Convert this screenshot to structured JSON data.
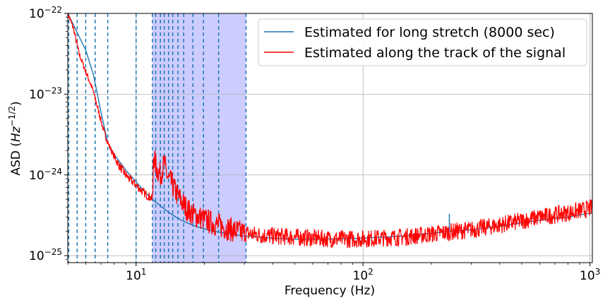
{
  "chart_data": {
    "type": "line",
    "x_scale": "log",
    "y_scale": "log",
    "xlim": [
      5,
      1024
    ],
    "ylim": [
      8.2e-26,
      1e-22
    ],
    "xlabel": "Frequency (Hz)",
    "ylabel_prefix": "ASD (",
    "ylabel_unit": "Hz",
    "ylabel_exponent": "−1/2",
    "ylabel_suffix": ")",
    "grid": true,
    "legend_placement": "top-right",
    "x_ticks": [
      {
        "value": 10,
        "base": "10",
        "exp": "1"
      },
      {
        "value": 100,
        "base": "10",
        "exp": "2"
      },
      {
        "value": 1000,
        "base": "10",
        "exp": "3"
      }
    ],
    "y_ticks": [
      {
        "value": 1e-22,
        "base": "10",
        "exp": "−22"
      },
      {
        "value": 1e-23,
        "base": "10",
        "exp": "−23"
      },
      {
        "value": 1e-24,
        "base": "10",
        "exp": "−24"
      },
      {
        "value": 1e-25,
        "base": "10",
        "exp": "−25"
      }
    ],
    "shaded_band": {
      "x": [
        11.8,
        30.5
      ],
      "color": "#ccccff"
    },
    "vertical_lines_x": [
      5.05,
      5.5,
      6.0,
      6.6,
      7.5,
      10.0,
      11.8,
      12.2,
      12.8,
      13.3,
      13.9,
      14.5,
      15.3,
      16.2,
      17.8,
      19.8,
      23.1,
      30.5
    ],
    "series": [
      {
        "name": "Estimated for long stretch (8000 sec)",
        "color": "#1f77b4",
        "x": [
          5,
          5.5,
          6,
          6.5,
          7,
          7.5,
          8,
          9,
          10,
          11,
          12,
          13,
          14,
          15,
          16,
          18,
          20,
          22,
          25,
          28,
          30,
          35,
          40,
          50,
          60,
          80,
          100,
          150,
          200,
          240,
          300,
          400,
          500,
          600,
          700,
          800,
          900,
          1024
        ],
        "y": [
          1e-22,
          5.8e-23,
          3.5e-23,
          1.7e-23,
          6e-24,
          2.5e-24,
          1.8e-24,
          1.15e-24,
          8.2e-25,
          6e-25,
          4.8e-25,
          4e-25,
          3.4e-25,
          3e-25,
          2.7e-25,
          2.35e-25,
          2.15e-25,
          2e-25,
          1.9e-25,
          1.8e-25,
          1.75e-25,
          1.7e-25,
          1.65e-25,
          1.6e-25,
          1.6e-25,
          1.62e-25,
          1.65e-25,
          1.75e-25,
          1.9e-25,
          2e-25,
          2.1e-25,
          2.3e-25,
          2.55e-25,
          2.75e-25,
          2.9e-25,
          3e-25,
          3.2e-25,
          3.4e-25
        ],
        "features": [
          {
            "x": 240,
            "ymax": 3.3e-25,
            "ymin": 2e-25
          }
        ]
      },
      {
        "name": "Estimated along the track of the signal",
        "color": "#ff0000",
        "x": [
          5,
          5.3,
          5.6,
          6,
          6.4,
          6.8,
          7.2,
          7.6,
          8,
          8.5,
          9,
          9.5,
          10,
          10.5,
          11,
          11.5,
          11.85,
          11.9,
          12.3,
          12.8,
          13.3,
          13.8,
          14.3,
          15,
          16,
          17,
          18,
          20,
          22,
          25,
          28,
          30,
          35,
          40,
          50,
          60,
          80,
          100,
          150,
          200,
          300,
          400,
          500,
          600,
          700,
          800,
          900,
          1024
        ],
        "y": [
          1e-22,
          6.5e-23,
          3.2e-23,
          1.9e-23,
          1.2e-23,
          6.5e-24,
          3.5e-24,
          2.3e-24,
          1.7e-24,
          1.25e-24,
          1e-24,
          8.5e-25,
          7.5e-25,
          6.5e-25,
          5.8e-25,
          5.3e-25,
          5e-25,
          1.8e-24,
          1.2e-24,
          1e-24,
          1.4e-24,
          9e-25,
          8e-25,
          6e-25,
          4.5e-25,
          3.6e-25,
          3.2e-25,
          2.8e-25,
          2.5e-25,
          2.2e-25,
          2e-25,
          1.9e-25,
          1.8e-25,
          1.75e-25,
          1.7e-25,
          1.65e-25,
          1.6e-25,
          1.62e-25,
          1.7e-25,
          1.85e-25,
          2.1e-25,
          2.4e-25,
          2.7e-25,
          3e-25,
          3.2e-25,
          3.4e-25,
          3.6e-25,
          3.9e-25
        ],
        "noise_log_amplitude": 0.11
      }
    ]
  }
}
